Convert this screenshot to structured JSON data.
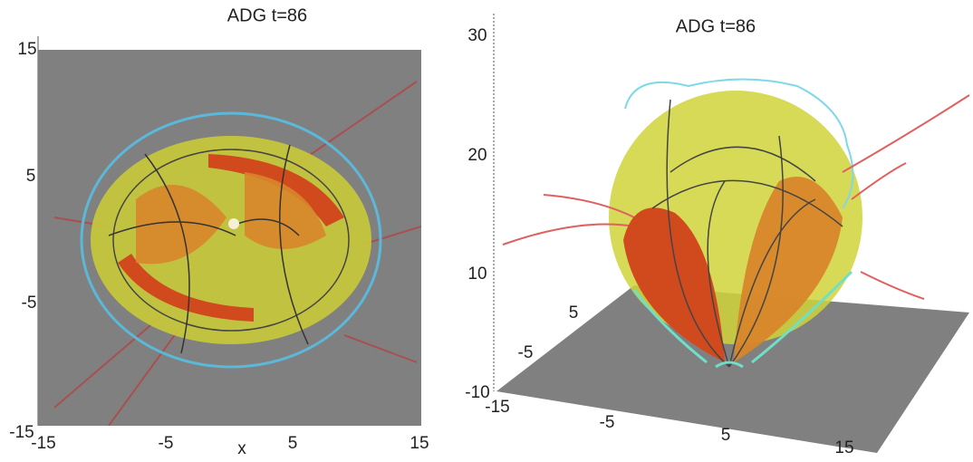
{
  "panels": [
    {
      "title": "ADG t=86",
      "y_tick_labels": [
        15,
        5,
        -5,
        -15
      ],
      "x_tick_labels": [
        -15,
        -5,
        5,
        15
      ],
      "x_label": "x"
    },
    {
      "title": "ADG t=86",
      "z_tick_labels": [
        30,
        20,
        10,
        -10
      ],
      "x_tick_labels": [
        -15,
        -5,
        5,
        15
      ],
      "y_tick_labels": [
        5,
        -5
      ]
    }
  ]
}
